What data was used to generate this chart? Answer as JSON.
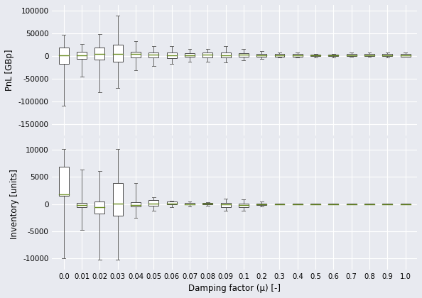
{
  "x_labels": [
    "0.0",
    "0.01",
    "0.02",
    "0.03",
    "0.04",
    "0.05",
    "0.06",
    "0.07",
    "0.08",
    "0.09",
    "0.1",
    "0.2",
    "0.3",
    "0.4",
    "0.5",
    "0.6",
    "0.7",
    "0.8",
    "0.9",
    "1.0"
  ],
  "pnl_data": {
    "whisker_low": [
      -110000,
      -45000,
      -80000,
      -70000,
      -32000,
      -22000,
      -18000,
      -13000,
      -12000,
      -15000,
      -10000,
      -7000,
      -4000,
      -4000,
      -3000,
      -3000,
      -2000,
      -2000,
      -3000,
      -2000
    ],
    "q1": [
      -18000,
      -7000,
      -8000,
      -13000,
      -4000,
      -3500,
      -4500,
      -2500,
      -3000,
      -4000,
      -2500,
      -1500,
      -1500,
      -1500,
      -1000,
      -1000,
      -800,
      -800,
      -800,
      -1200
    ],
    "median": [
      2000,
      1500,
      4000,
      4000,
      4000,
      2500,
      1500,
      1500,
      2500,
      1500,
      2500,
      1500,
      1500,
      1500,
      800,
      800,
      1500,
      1500,
      1500,
      1500
    ],
    "q3": [
      18000,
      9000,
      18000,
      25000,
      9000,
      7000,
      7000,
      6000,
      7000,
      7000,
      6000,
      4000,
      4000,
      4000,
      2500,
      2500,
      4000,
      4000,
      4000,
      4000
    ],
    "whisker_high": [
      46000,
      26000,
      48000,
      88000,
      32000,
      22000,
      22000,
      16000,
      16000,
      22000,
      16000,
      10000,
      7000,
      7000,
      4000,
      4000,
      7000,
      7000,
      7000,
      7000
    ]
  },
  "inv_data": {
    "whisker_low": [
      -10000,
      -4800,
      -10200,
      -10200,
      -2500,
      -1200,
      -600,
      -400,
      -350,
      -1200,
      -1200,
      -400,
      -30,
      -30,
      -20,
      -20,
      -20,
      -20,
      -20,
      -20
    ],
    "q1": [
      1500,
      -600,
      -1800,
      -2200,
      -400,
      -300,
      -80,
      -80,
      -80,
      -600,
      -600,
      -200,
      -20,
      -20,
      -10,
      -10,
      -10,
      -10,
      -10,
      -10
    ],
    "median": [
      1800,
      -250,
      -600,
      100,
      -150,
      100,
      120,
      0,
      80,
      -80,
      -250,
      -30,
      0,
      0,
      0,
      0,
      0,
      0,
      0,
      0
    ],
    "q3": [
      6800,
      150,
      400,
      3800,
      300,
      700,
      400,
      160,
      250,
      150,
      80,
      30,
      20,
      20,
      10,
      10,
      10,
      10,
      10,
      10
    ],
    "whisker_high": [
      10100,
      6300,
      6000,
      10100,
      3800,
      1200,
      600,
      400,
      350,
      1000,
      800,
      400,
      20,
      20,
      10,
      10,
      10,
      10,
      10,
      10
    ]
  },
  "bg_color": "#e8eaf0",
  "plot_bg_color": "#e8eaf0",
  "box_facecolor": "white",
  "box_edgecolor": "#4a4a4a",
  "median_color": "#6b8e23",
  "whisker_color": "#666666",
  "cap_color": "#666666",
  "grid_color": "#ffffff",
  "xlabel": "Damping factor (μ) [-]",
  "ylabel_top": "PnL [GBp]",
  "ylabel_bottom": "Inventory [units]",
  "pnl_yticks": [
    -150000,
    -100000,
    -50000,
    0,
    50000,
    100000
  ],
  "inv_yticks": [
    -10000,
    -5000,
    0,
    5000,
    10000
  ],
  "pnl_ylim": [
    -175000,
    112000
  ],
  "inv_ylim": [
    -12000,
    12000
  ],
  "figsize": [
    5.94,
    4.2
  ],
  "dpi": 100
}
